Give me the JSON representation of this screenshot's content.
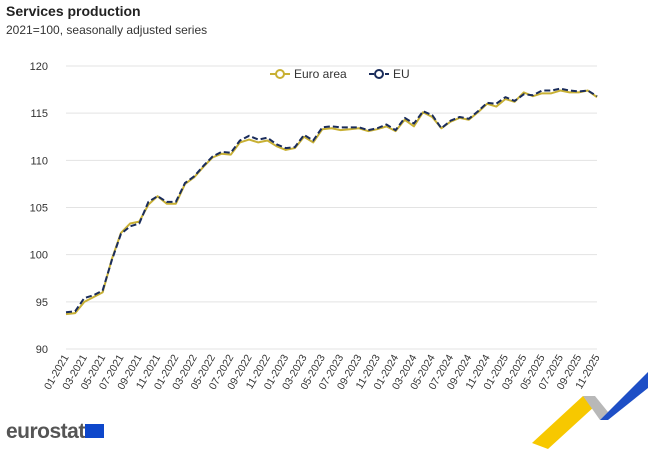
{
  "chart_data": {
    "type": "line",
    "title": "Services production",
    "subtitle": "2021=100, seasonally adjusted series",
    "ylim": [
      90,
      120
    ],
    "yticks": [
      90,
      95,
      100,
      105,
      110,
      115,
      120
    ],
    "grid": true,
    "legend": "top-center",
    "x": [
      "01-2021",
      "02-2021",
      "03-2021",
      "04-2021",
      "05-2021",
      "06-2021",
      "07-2021",
      "08-2021",
      "09-2021",
      "10-2021",
      "11-2021",
      "12-2021",
      "01-2022",
      "02-2022",
      "03-2022",
      "04-2022",
      "05-2022",
      "06-2022",
      "07-2022",
      "08-2022",
      "09-2022",
      "10-2022",
      "11-2022",
      "12-2022",
      "01-2023",
      "02-2023",
      "03-2023",
      "04-2023",
      "05-2023",
      "06-2023",
      "07-2023",
      "08-2023",
      "09-2023",
      "10-2023",
      "11-2023",
      "12-2023",
      "01-2024",
      "02-2024",
      "03-2024",
      "04-2024",
      "05-2024",
      "06-2024",
      "07-2024",
      "08-2024",
      "09-2024",
      "10-2024",
      "11-2024",
      "12-2024",
      "01-2025",
      "02-2025",
      "03-2025",
      "04-2025",
      "05-2025",
      "06-2025",
      "07-2025",
      "08-2025",
      "09-2025",
      "10-2025",
      "11-2025"
    ],
    "series": [
      {
        "name": "Euro area",
        "color": "#c8b034",
        "dash": false,
        "values": [
          93.7,
          93.8,
          95.0,
          95.5,
          96.0,
          99.5,
          102.3,
          103.3,
          103.5,
          105.3,
          106.2,
          105.4,
          105.4,
          107.5,
          108.2,
          109.3,
          110.3,
          110.7,
          110.6,
          111.9,
          112.2,
          111.9,
          112.1,
          111.5,
          111.1,
          111.3,
          112.5,
          111.9,
          113.3,
          113.4,
          113.2,
          113.3,
          113.4,
          113.1,
          113.3,
          113.6,
          113.1,
          114.3,
          113.6,
          115.1,
          114.6,
          113.4,
          114.1,
          114.5,
          114.3,
          115.1,
          116.0,
          115.7,
          116.5,
          116.2,
          117.2,
          116.8,
          117.1,
          117.1,
          117.4,
          117.2,
          117.2,
          117.4,
          116.7
        ]
      },
      {
        "name": "EU",
        "color": "#1a2c5b",
        "dash": true,
        "values": [
          93.9,
          94.0,
          95.4,
          95.7,
          96.2,
          99.4,
          102.2,
          103.0,
          103.3,
          105.6,
          106.2,
          105.6,
          105.6,
          107.6,
          108.3,
          109.4,
          110.4,
          110.9,
          110.8,
          112.1,
          112.6,
          112.2,
          112.4,
          111.7,
          111.3,
          111.4,
          112.7,
          112.1,
          113.5,
          113.6,
          113.5,
          113.5,
          113.5,
          113.2,
          113.4,
          113.8,
          113.2,
          114.5,
          113.9,
          115.2,
          114.8,
          113.4,
          114.2,
          114.6,
          114.4,
          115.2,
          116.1,
          116.0,
          116.7,
          116.3,
          117.0,
          116.9,
          117.4,
          117.4,
          117.6,
          117.4,
          117.3,
          117.4,
          116.8
        ]
      }
    ]
  },
  "branding": {
    "logo": "eurostat"
  }
}
